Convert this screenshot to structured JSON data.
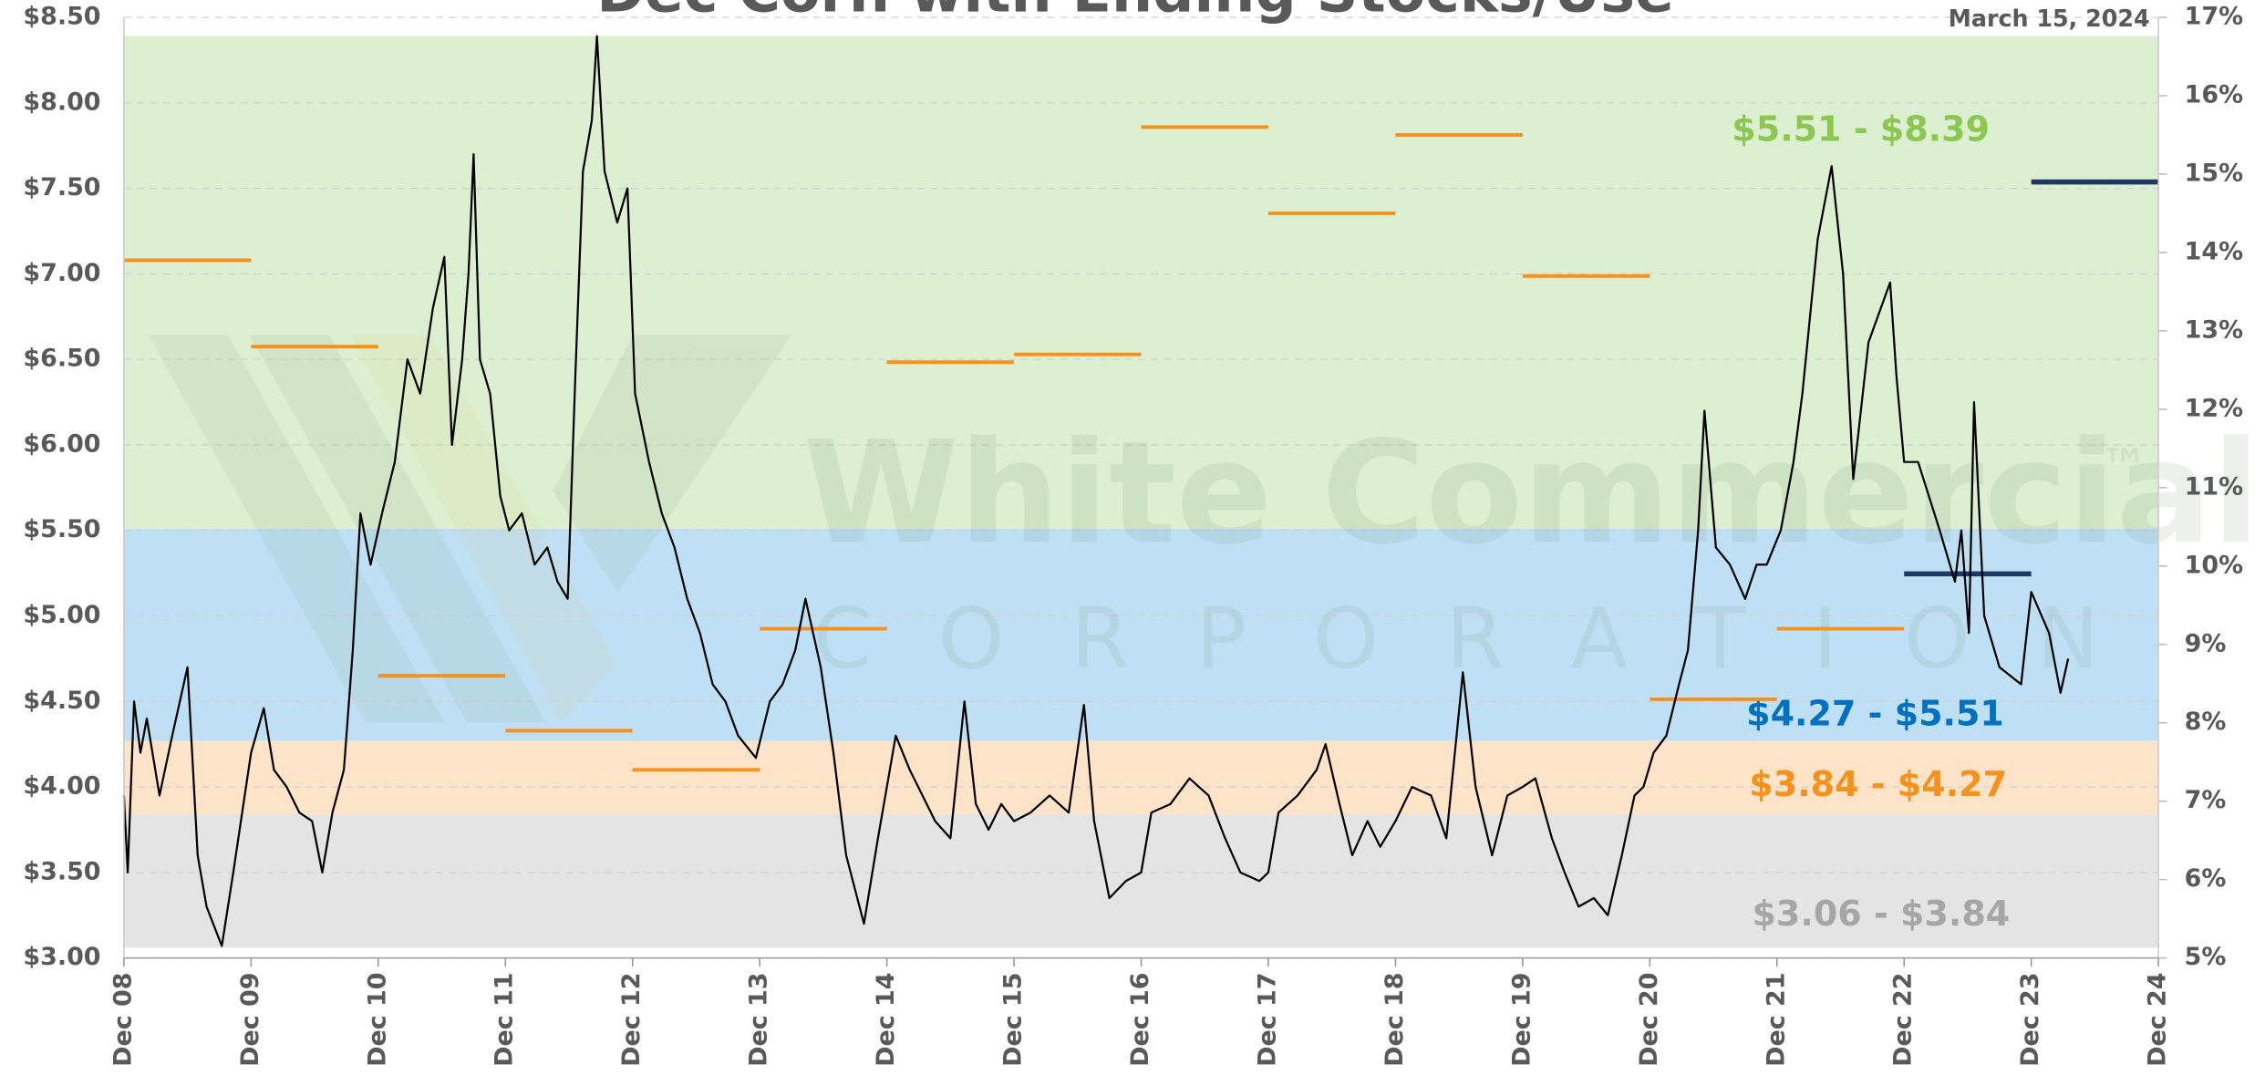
{
  "chart_data": {
    "type": "line",
    "title": "Dec Corn with Ending Stocks/Use",
    "date": "March 15, 2024",
    "watermark": [
      "White Commercial",
      "™",
      "C O R P O R A T I O N"
    ],
    "xlim": [
      2008.92,
      2024.92
    ],
    "xticks": [
      {
        "value": 2008.92,
        "label": "Dec 08"
      },
      {
        "value": 2009.92,
        "label": "Dec 09"
      },
      {
        "value": 2010.92,
        "label": "Dec 10"
      },
      {
        "value": 2011.92,
        "label": "Dec 11"
      },
      {
        "value": 2012.92,
        "label": "Dec 12"
      },
      {
        "value": 2013.92,
        "label": "Dec 13"
      },
      {
        "value": 2014.92,
        "label": "Dec 14"
      },
      {
        "value": 2015.92,
        "label": "Dec 15"
      },
      {
        "value": 2016.92,
        "label": "Dec 16"
      },
      {
        "value": 2017.92,
        "label": "Dec 17"
      },
      {
        "value": 2018.92,
        "label": "Dec 18"
      },
      {
        "value": 2019.92,
        "label": "Dec 19"
      },
      {
        "value": 2020.92,
        "label": "Dec 20"
      },
      {
        "value": 2021.92,
        "label": "Dec 21"
      },
      {
        "value": 2022.92,
        "label": "Dec 22"
      },
      {
        "value": 2023.92,
        "label": "Dec 23"
      },
      {
        "value": 2024.92,
        "label": "Dec 24"
      }
    ],
    "ylim": [
      3,
      8.5
    ],
    "yticks": [
      {
        "value": 3,
        "label": "$3.00"
      },
      {
        "value": 3.5,
        "label": "$3.50"
      },
      {
        "value": 4,
        "label": "$4.00"
      },
      {
        "value": 4.5,
        "label": "$4.50"
      },
      {
        "value": 5,
        "label": "$5.00"
      },
      {
        "value": 5.5,
        "label": "$5.50"
      },
      {
        "value": 6,
        "label": "$6.00"
      },
      {
        "value": 6.5,
        "label": "$6.50"
      },
      {
        "value": 7,
        "label": "$7.00"
      },
      {
        "value": 7.5,
        "label": "$7.50"
      },
      {
        "value": 8,
        "label": "$8.00"
      },
      {
        "value": 8.5,
        "label": "$8.50"
      }
    ],
    "y2lim": [
      5,
      17
    ],
    "y2ticks": [
      {
        "value": 5,
        "label": "5%"
      },
      {
        "value": 6,
        "label": "6%"
      },
      {
        "value": 7,
        "label": "7%"
      },
      {
        "value": 8,
        "label": "8%"
      },
      {
        "value": 9,
        "label": "9%"
      },
      {
        "value": 10,
        "label": "10%"
      },
      {
        "value": 11,
        "label": "11%"
      },
      {
        "value": 12,
        "label": "12%"
      },
      {
        "value": 13,
        "label": "13%"
      },
      {
        "value": 14,
        "label": "14%"
      },
      {
        "value": 15,
        "label": "15%"
      },
      {
        "value": 16,
        "label": "16%"
      },
      {
        "value": 17,
        "label": "17%"
      }
    ],
    "grid": true,
    "bands": [
      {
        "low": 3.06,
        "high": 3.84,
        "label": "$3.06 - $3.84",
        "color": "#e4e4e4",
        "label_color": "#a6a6a6"
      },
      {
        "low": 3.84,
        "high": 4.27,
        "label": "$3.84 - $4.27",
        "color": "#fde3c7",
        "label_color": "#f5921e"
      },
      {
        "low": 4.27,
        "high": 5.51,
        "label": "$4.27 - $5.51",
        "color": "#bfe0f4",
        "label_color": "#0070c0"
      },
      {
        "low": 5.51,
        "high": 8.39,
        "label": "$5.51 - $8.39",
        "color": "#dcefd0",
        "label_color": "#8cc751"
      }
    ],
    "segments": [
      {
        "x0": 2008.92,
        "x1": 2009.92,
        "value": 13.9,
        "color": "#f5921e"
      },
      {
        "x0": 2009.92,
        "x1": 2010.92,
        "value": 12.8,
        "color": "#f5921e"
      },
      {
        "x0": 2010.92,
        "x1": 2011.92,
        "value": 8.6,
        "color": "#f5921e"
      },
      {
        "x0": 2011.92,
        "x1": 2012.92,
        "value": 7.9,
        "color": "#f5921e"
      },
      {
        "x0": 2012.92,
        "x1": 2013.92,
        "value": 7.4,
        "color": "#f5921e"
      },
      {
        "x0": 2013.92,
        "x1": 2014.92,
        "value": 9.2,
        "color": "#f5921e"
      },
      {
        "x0": 2014.92,
        "x1": 2015.92,
        "value": 12.6,
        "color": "#f5921e"
      },
      {
        "x0": 2015.92,
        "x1": 2016.92,
        "value": 12.7,
        "color": "#f5921e"
      },
      {
        "x0": 2016.92,
        "x1": 2017.92,
        "value": 15.6,
        "color": "#f5921e"
      },
      {
        "x0": 2017.92,
        "x1": 2018.92,
        "value": 14.5,
        "color": "#f5921e"
      },
      {
        "x0": 2018.92,
        "x1": 2019.92,
        "value": 15.5,
        "color": "#f5921e"
      },
      {
        "x0": 2019.92,
        "x1": 2020.92,
        "value": 13.7,
        "color": "#f5921e"
      },
      {
        "x0": 2020.92,
        "x1": 2021.92,
        "value": 8.3,
        "color": "#f5921e"
      },
      {
        "x0": 2021.92,
        "x1": 2022.92,
        "value": 9.2,
        "color": "#f5921e"
      },
      {
        "x0": 2022.92,
        "x1": 2023.92,
        "value": 9.9,
        "color": "#1f3864"
      },
      {
        "x0": 2023.92,
        "x1": 2024.92,
        "value": 14.9,
        "color": "#1f3864"
      }
    ],
    "series": [
      {
        "color": "#000000",
        "x": [
          2008.92,
          2008.95,
          2009.0,
          2009.05,
          2009.1,
          2009.2,
          2009.3,
          2009.42,
          2009.5,
          2009.57,
          2009.69,
          2009.78,
          2009.86,
          2009.92,
          2010.02,
          2010.1,
          2010.2,
          2010.3,
          2010.4,
          2010.48,
          2010.56,
          2010.65,
          2010.72,
          2010.78,
          2010.86,
          2010.95,
          2011.05,
          2011.15,
          2011.25,
          2011.35,
          2011.44,
          2011.5,
          2011.58,
          2011.63,
          2011.67,
          2011.72,
          2011.8,
          2011.88,
          2011.95,
          2012.05,
          2012.15,
          2012.25,
          2012.33,
          2012.41,
          2012.47,
          2012.53,
          2012.6,
          2012.64,
          2012.7,
          2012.8,
          2012.88,
          2012.94,
          2013.05,
          2013.15,
          2013.25,
          2013.35,
          2013.45,
          2013.55,
          2013.65,
          2013.75,
          2013.89,
          2014.0,
          2014.1,
          2014.2,
          2014.28,
          2014.4,
          2014.5,
          2014.6,
          2014.74,
          2014.85,
          2014.99,
          2015.1,
          2015.2,
          2015.3,
          2015.42,
          2015.53,
          2015.62,
          2015.72,
          2015.82,
          2015.92,
          2016.05,
          2016.2,
          2016.35,
          2016.47,
          2016.55,
          2016.67,
          2016.8,
          2016.92,
          2017.0,
          2017.15,
          2017.3,
          2017.45,
          2017.58,
          2017.7,
          2017.85,
          2017.92,
          2018.0,
          2018.15,
          2018.3,
          2018.37,
          2018.48,
          2018.58,
          2018.7,
          2018.8,
          2018.92,
          2019.05,
          2019.2,
          2019.32,
          2019.45,
          2019.55,
          2019.68,
          2019.8,
          2019.92,
          2020.02,
          2020.15,
          2020.25,
          2020.36,
          2020.48,
          2020.59,
          2020.7,
          2020.8,
          2020.87,
          2020.95,
          2021.05,
          2021.15,
          2021.22,
          2021.3,
          2021.35,
          2021.44,
          2021.55,
          2021.67,
          2021.76,
          2021.84,
          2021.95,
          2022.05,
          2022.12,
          2022.24,
          2022.35,
          2022.44,
          2022.52,
          2022.64,
          2022.81,
          2022.86,
          2022.92,
          2023.03,
          2023.2,
          2023.32,
          2023.37,
          2023.43,
          2023.47,
          2023.55,
          2023.67,
          2023.84,
          2023.92,
          2024.06,
          2024.15,
          2024.21
        ],
        "values": [
          3.95,
          3.5,
          4.5,
          4.2,
          4.4,
          3.95,
          4.3,
          4.7,
          3.6,
          3.3,
          3.07,
          3.5,
          3.9,
          4.2,
          4.46,
          4.1,
          4.0,
          3.85,
          3.8,
          3.5,
          3.85,
          4.1,
          4.8,
          5.6,
          5.3,
          5.6,
          5.9,
          6.5,
          6.3,
          6.8,
          7.1,
          6.0,
          6.5,
          7.0,
          7.7,
          6.5,
          6.3,
          5.7,
          5.5,
          5.6,
          5.3,
          5.4,
          5.2,
          5.1,
          6.4,
          7.6,
          7.9,
          8.39,
          7.6,
          7.3,
          7.5,
          6.3,
          5.9,
          5.6,
          5.4,
          5.1,
          4.9,
          4.6,
          4.5,
          4.3,
          4.17,
          4.5,
          4.6,
          4.8,
          5.1,
          4.7,
          4.2,
          3.6,
          3.2,
          3.7,
          4.3,
          4.1,
          3.95,
          3.8,
          3.7,
          4.5,
          3.9,
          3.75,
          3.9,
          3.8,
          3.85,
          3.95,
          3.85,
          4.48,
          3.8,
          3.35,
          3.45,
          3.5,
          3.85,
          3.9,
          4.05,
          3.95,
          3.7,
          3.5,
          3.45,
          3.5,
          3.85,
          3.95,
          4.1,
          4.25,
          3.9,
          3.6,
          3.8,
          3.65,
          3.8,
          4.0,
          3.95,
          3.7,
          4.67,
          4.0,
          3.6,
          3.95,
          4.0,
          4.05,
          3.7,
          3.5,
          3.3,
          3.35,
          3.25,
          3.6,
          3.95,
          4.0,
          4.2,
          4.3,
          4.6,
          4.8,
          5.5,
          6.2,
          5.4,
          5.3,
          5.1,
          5.3,
          5.3,
          5.5,
          5.9,
          6.3,
          7.2,
          7.63,
          7.0,
          5.8,
          6.6,
          6.95,
          6.4,
          5.9,
          5.9,
          5.5,
          5.2,
          5.5,
          4.9,
          6.25,
          5.0,
          4.7,
          4.6,
          5.14,
          4.9,
          4.55,
          4.75
        ]
      }
    ]
  }
}
